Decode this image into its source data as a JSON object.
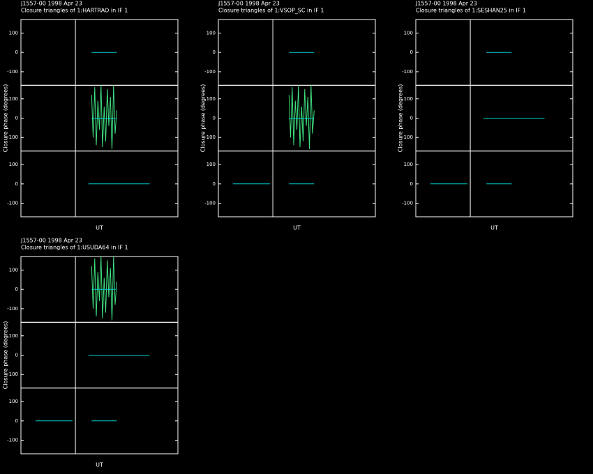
{
  "chart_data": [
    {
      "type": "line",
      "title": "J1557-00  1998 Apr 23",
      "subtitle": "Closure triangles of 1:HARTRAO in IF 1",
      "ylabel": "Closure phase  (degrees)",
      "xlabel": "UT",
      "xlim": [
        0,
        100
      ],
      "vline": 34.7,
      "subplots": [
        {
          "ylim": [
            -170,
            170
          ],
          "yticks": [
            -100,
            0,
            100
          ],
          "series": [
            {
              "color": "#00d0d0",
              "x": [
                45,
                61
              ],
              "values": [
                0,
                0
              ]
            }
          ]
        },
        {
          "ylim": [
            -170,
            170
          ],
          "yticks": [
            -100,
            0,
            100
          ],
          "series": [
            {
              "color": "#40e080",
              "x": [
                45,
                46,
                47,
                48,
                49,
                50,
                51,
                52,
                53,
                54,
                55,
                56,
                57,
                58,
                59,
                60,
                61
              ],
              "values": [
                120,
                -100,
                160,
                -140,
                90,
                -60,
                170,
                -150,
                60,
                -120,
                150,
                -40,
                110,
                -160,
                170,
                -80,
                40
              ]
            },
            {
              "color": "#00d0d0",
              "x": [
                45,
                61
              ],
              "values": [
                0,
                0
              ]
            }
          ]
        },
        {
          "ylim": [
            -170,
            170
          ],
          "yticks": [
            -100,
            0,
            100
          ],
          "series": [
            {
              "color": "#00d0d0",
              "x": [
                43,
                82
              ],
              "values": [
                0,
                0
              ]
            }
          ]
        }
      ]
    },
    {
      "type": "line",
      "title": "J1557-00  1998 Apr 23",
      "subtitle": "Closure triangles of 1:VSOP_SC in IF 1",
      "ylabel": "Closure phase  (degrees)",
      "xlabel": "UT",
      "xlim": [
        0,
        100
      ],
      "vline": 34.7,
      "subplots": [
        {
          "ylim": [
            -170,
            170
          ],
          "yticks": [
            -100,
            0,
            100
          ],
          "series": [
            {
              "color": "#00d0d0",
              "x": [
                45,
                61
              ],
              "values": [
                0,
                0
              ]
            }
          ]
        },
        {
          "ylim": [
            -170,
            170
          ],
          "yticks": [
            -100,
            0,
            100
          ],
          "series": [
            {
              "color": "#40e080",
              "x": [
                45,
                46,
                47,
                48,
                49,
                50,
                51,
                52,
                53,
                54,
                55,
                56,
                57,
                58,
                59,
                60,
                61
              ],
              "values": [
                120,
                -100,
                160,
                -140,
                90,
                -60,
                170,
                -150,
                60,
                -120,
                150,
                -40,
                110,
                -160,
                170,
                -80,
                40
              ]
            },
            {
              "color": "#00d0d0",
              "x": [
                45,
                61
              ],
              "values": [
                0,
                0
              ]
            }
          ]
        },
        {
          "ylim": [
            -170,
            170
          ],
          "yticks": [
            -100,
            0,
            100
          ],
          "series": [
            {
              "color": "#00d0d0",
              "x": [
                9.3,
                32.9,
                null,
                45,
                61
              ],
              "values": [
                0,
                0,
                null,
                0,
                0
              ]
            }
          ]
        }
      ]
    },
    {
      "type": "line",
      "title": "J1557-00  1998 Apr 23",
      "subtitle": "Closure triangles of 1:SESHAN25 in IF 1",
      "ylabel": "Closure phase  (degrees)",
      "xlabel": "UT",
      "xlim": [
        0,
        100
      ],
      "vline": 34.7,
      "subplots": [
        {
          "ylim": [
            -170,
            170
          ],
          "yticks": [
            -100,
            0,
            100
          ],
          "series": [
            {
              "color": "#00d0d0",
              "x": [
                45,
                61
              ],
              "values": [
                0,
                0
              ]
            }
          ]
        },
        {
          "ylim": [
            -170,
            170
          ],
          "yticks": [
            -100,
            0,
            100
          ],
          "series": [
            {
              "color": "#00d0d0",
              "x": [
                43,
                82
              ],
              "values": [
                0,
                0
              ]
            }
          ]
        },
        {
          "ylim": [
            -170,
            170
          ],
          "yticks": [
            -100,
            0,
            100
          ],
          "series": [
            {
              "color": "#00d0d0",
              "x": [
                9.3,
                32.9,
                null,
                45,
                61
              ],
              "values": [
                0,
                0,
                null,
                0,
                0
              ]
            }
          ]
        }
      ]
    },
    {
      "type": "line",
      "title": "J1557-00  1998 Apr 23",
      "subtitle": "Closure triangles of 1:USUDA64 in IF 1",
      "ylabel": "Closure phase  (degrees)",
      "xlabel": "UT",
      "xlim": [
        0,
        100
      ],
      "vline": 34.7,
      "subplots": [
        {
          "ylim": [
            -170,
            170
          ],
          "yticks": [
            -100,
            0,
            100
          ],
          "series": [
            {
              "color": "#40e080",
              "x": [
                45,
                46,
                47,
                48,
                49,
                50,
                51,
                52,
                53,
                54,
                55,
                56,
                57,
                58,
                59,
                60,
                61
              ],
              "values": [
                120,
                -100,
                160,
                -140,
                90,
                -60,
                170,
                -150,
                60,
                -120,
                150,
                -40,
                110,
                -160,
                170,
                -80,
                40
              ]
            },
            {
              "color": "#00d0d0",
              "x": [
                45,
                61
              ],
              "values": [
                0,
                0
              ]
            }
          ]
        },
        {
          "ylim": [
            -170,
            170
          ],
          "yticks": [
            -100,
            0,
            100
          ],
          "series": [
            {
              "color": "#00d0d0",
              "x": [
                43,
                82
              ],
              "values": [
                0,
                0
              ]
            }
          ]
        },
        {
          "ylim": [
            -170,
            170
          ],
          "yticks": [
            -100,
            0,
            100
          ],
          "series": [
            {
              "color": "#00d0d0",
              "x": [
                9.3,
                32.9,
                null,
                45,
                61
              ],
              "values": [
                0,
                0,
                null,
                0,
                0
              ]
            }
          ]
        }
      ]
    }
  ]
}
